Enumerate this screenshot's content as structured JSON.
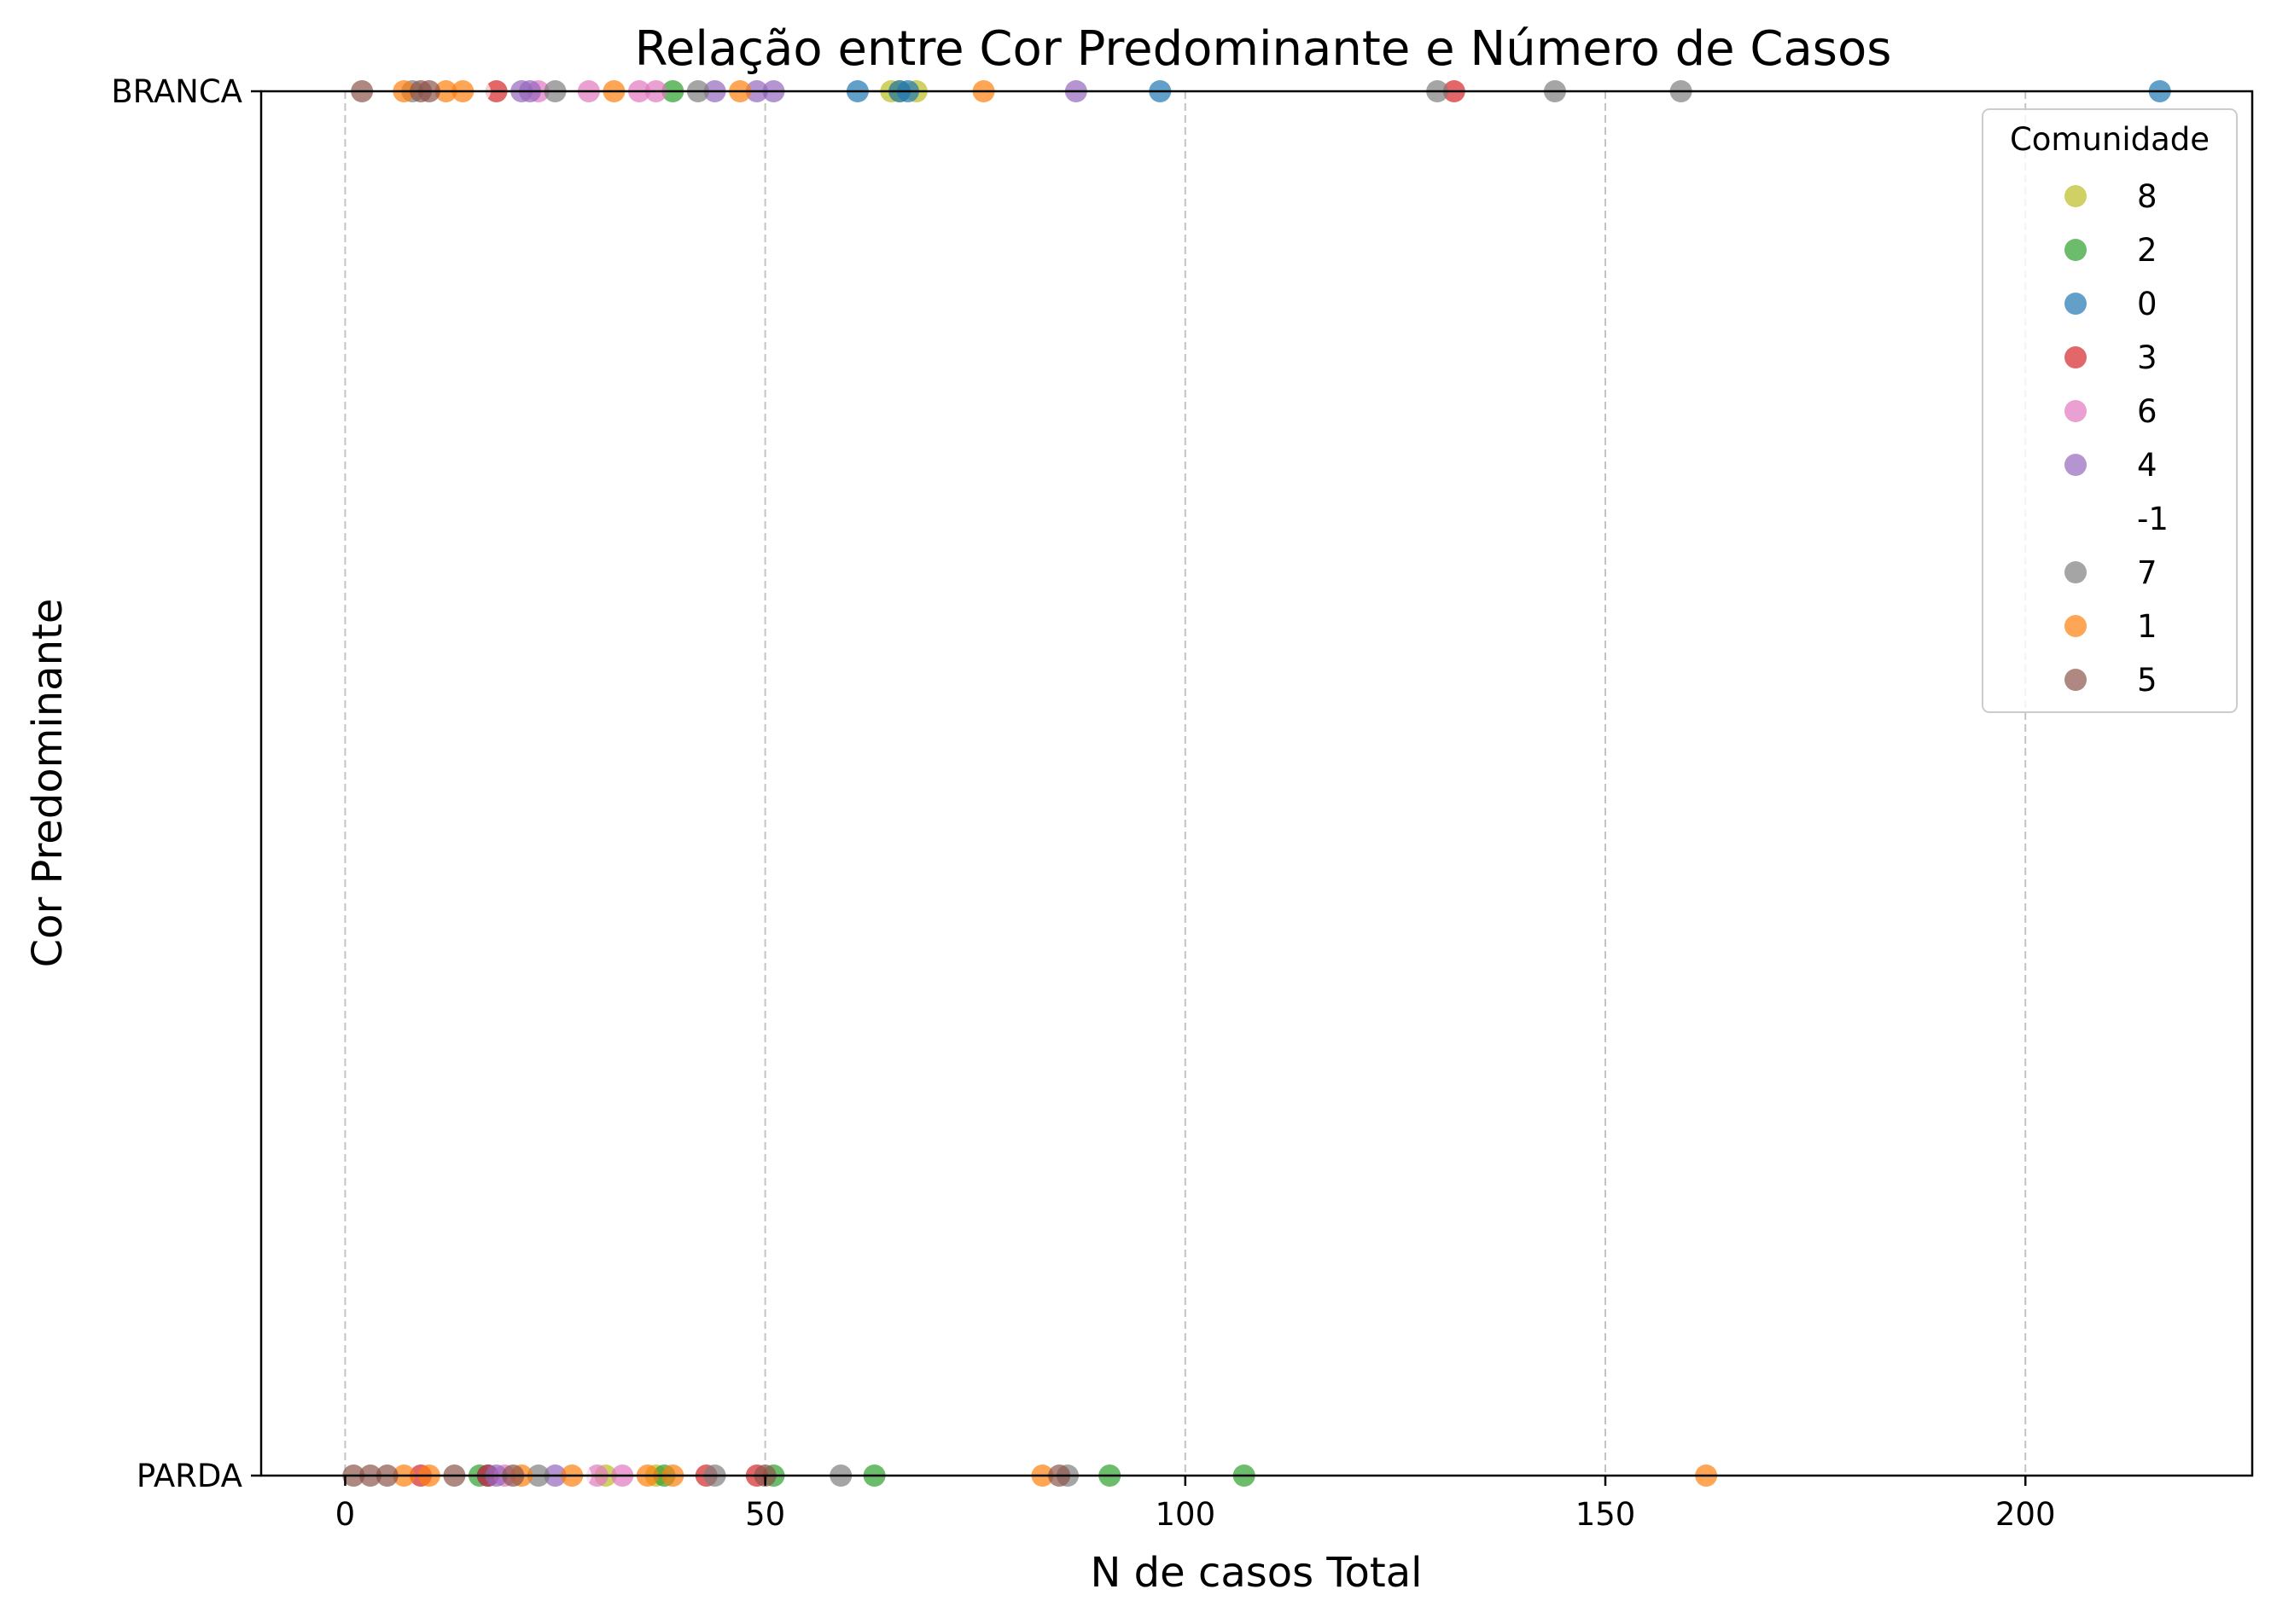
{
  "chart_data": {
    "type": "scatter",
    "title": "Relação entre Cor Predominante e Número de Casos",
    "xlabel": "N de casos Total",
    "ylabel": "Cor Predominante",
    "xlim": [
      -10,
      227
    ],
    "x_ticks": [
      0,
      50,
      100,
      150,
      200
    ],
    "y_categories": [
      "PARDA",
      "BRANCA"
    ],
    "grid": "x-dashed",
    "legend": {
      "title": "Comunidade",
      "placement": "top-right"
    },
    "series": [
      {
        "name": "8",
        "color": "#bcbd22",
        "points": [
          {
            "x": 65,
            "y": "BRANCA"
          },
          {
            "x": 66,
            "y": "BRANCA"
          },
          {
            "x": 68,
            "y": "BRANCA"
          },
          {
            "x": 31,
            "y": "PARDA"
          },
          {
            "x": 37,
            "y": "PARDA"
          }
        ]
      },
      {
        "name": "2",
        "color": "#2ca02c",
        "points": [
          {
            "x": 39,
            "y": "BRANCA"
          },
          {
            "x": 16,
            "y": "PARDA"
          },
          {
            "x": 38,
            "y": "PARDA"
          },
          {
            "x": 51,
            "y": "PARDA"
          },
          {
            "x": 63,
            "y": "PARDA"
          },
          {
            "x": 91,
            "y": "PARDA"
          },
          {
            "x": 107,
            "y": "PARDA"
          }
        ]
      },
      {
        "name": "0",
        "color": "#1f77b4",
        "points": [
          {
            "x": 61,
            "y": "BRANCA"
          },
          {
            "x": 66,
            "y": "BRANCA"
          },
          {
            "x": 67,
            "y": "BRANCA"
          },
          {
            "x": 97,
            "y": "BRANCA"
          },
          {
            "x": 216,
            "y": "BRANCA"
          },
          {
            "x": 17,
            "y": "PARDA"
          }
        ]
      },
      {
        "name": "3",
        "color": "#d62728",
        "points": [
          {
            "x": 18,
            "y": "BRANCA"
          },
          {
            "x": 132,
            "y": "BRANCA"
          },
          {
            "x": 9,
            "y": "PARDA"
          },
          {
            "x": 17,
            "y": "PARDA"
          },
          {
            "x": 43,
            "y": "PARDA"
          },
          {
            "x": 49,
            "y": "PARDA"
          }
        ]
      },
      {
        "name": "6",
        "color": "#e377c2",
        "points": [
          {
            "x": 23,
            "y": "BRANCA"
          },
          {
            "x": 29,
            "y": "BRANCA"
          },
          {
            "x": 35,
            "y": "BRANCA"
          },
          {
            "x": 37,
            "y": "BRANCA"
          },
          {
            "x": 19,
            "y": "PARDA"
          },
          {
            "x": 30,
            "y": "PARDA"
          },
          {
            "x": 33,
            "y": "PARDA"
          }
        ]
      },
      {
        "name": "4",
        "color": "#9467bd",
        "points": [
          {
            "x": 21,
            "y": "BRANCA"
          },
          {
            "x": 22,
            "y": "BRANCA"
          },
          {
            "x": 44,
            "y": "BRANCA"
          },
          {
            "x": 49,
            "y": "BRANCA"
          },
          {
            "x": 51,
            "y": "BRANCA"
          },
          {
            "x": 87,
            "y": "BRANCA"
          },
          {
            "x": 18,
            "y": "PARDA"
          },
          {
            "x": 25,
            "y": "PARDA"
          }
        ]
      },
      {
        "name": "-1",
        "color": "#ffffff",
        "points": [
          {
            "x": 5,
            "y": "BRANCA"
          },
          {
            "x": 16,
            "y": "BRANCA"
          },
          {
            "x": 26,
            "y": "BRANCA"
          },
          {
            "x": 28,
            "y": "PARDA"
          },
          {
            "x": 57,
            "y": "PARDA"
          }
        ]
      },
      {
        "name": "7",
        "color": "#7f7f7f",
        "points": [
          {
            "x": 8,
            "y": "BRANCA"
          },
          {
            "x": 25,
            "y": "BRANCA"
          },
          {
            "x": 42,
            "y": "BRANCA"
          },
          {
            "x": 130,
            "y": "BRANCA"
          },
          {
            "x": 144,
            "y": "BRANCA"
          },
          {
            "x": 159,
            "y": "BRANCA"
          },
          {
            "x": 23,
            "y": "PARDA"
          },
          {
            "x": 44,
            "y": "PARDA"
          },
          {
            "x": 59,
            "y": "PARDA"
          },
          {
            "x": 86,
            "y": "PARDA"
          }
        ]
      },
      {
        "name": "1",
        "color": "#ff7f0e",
        "points": [
          {
            "x": 7,
            "y": "BRANCA"
          },
          {
            "x": 12,
            "y": "BRANCA"
          },
          {
            "x": 14,
            "y": "BRANCA"
          },
          {
            "x": 32,
            "y": "BRANCA"
          },
          {
            "x": 47,
            "y": "BRANCA"
          },
          {
            "x": 76,
            "y": "BRANCA"
          },
          {
            "x": 7,
            "y": "PARDA"
          },
          {
            "x": 10,
            "y": "PARDA"
          },
          {
            "x": 21,
            "y": "PARDA"
          },
          {
            "x": 27,
            "y": "PARDA"
          },
          {
            "x": 36,
            "y": "PARDA"
          },
          {
            "x": 39,
            "y": "PARDA"
          },
          {
            "x": 83,
            "y": "PARDA"
          },
          {
            "x": 162,
            "y": "PARDA"
          }
        ]
      },
      {
        "name": "5",
        "color": "#8c564b",
        "points": [
          {
            "x": 2,
            "y": "BRANCA"
          },
          {
            "x": 9,
            "y": "BRANCA"
          },
          {
            "x": 10,
            "y": "BRANCA"
          },
          {
            "x": 1,
            "y": "PARDA"
          },
          {
            "x": 3,
            "y": "PARDA"
          },
          {
            "x": 5,
            "y": "PARDA"
          },
          {
            "x": 13,
            "y": "PARDA"
          },
          {
            "x": 20,
            "y": "PARDA"
          },
          {
            "x": 50,
            "y": "PARDA"
          },
          {
            "x": 85,
            "y": "PARDA"
          }
        ]
      }
    ]
  }
}
